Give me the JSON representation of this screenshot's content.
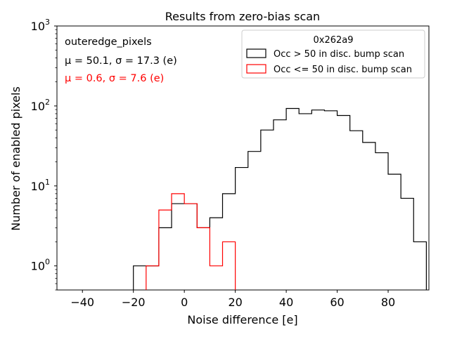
{
  "chart_data": {
    "type": "histogram",
    "title": "Results from zero-bias scan",
    "xlabel": "Noise difference [e]",
    "ylabel": "Number of enabled pixels",
    "xlim": [
      -50,
      96
    ],
    "ylim": [
      0.5,
      1000
    ],
    "yscale": "log",
    "x_ticks": [
      -40,
      -20,
      0,
      20,
      40,
      60,
      80
    ],
    "x_tick_labels": [
      "−40",
      "−20",
      "0",
      "20",
      "40",
      "60",
      "80"
    ],
    "y_ticks": [
      1,
      10,
      100,
      1000
    ],
    "y_tick_labels": [
      {
        "base": "10",
        "exp": "0"
      },
      {
        "base": "10",
        "exp": "1"
      },
      {
        "base": "10",
        "exp": "2"
      },
      {
        "base": "10",
        "exp": "3"
      }
    ],
    "grid": false,
    "legend_placement": "top-right",
    "legend_title": "0x262a9",
    "annotations": {
      "name": "outeredge_pixels",
      "stats_black": "μ = 50.1, σ = 17.3 (e)",
      "stats_red": "μ = 0.6, σ = 7.6 (e)"
    },
    "series": [
      {
        "name": "Occ > 50 in disc. bump scan",
        "color": "#000000",
        "bins": [
          [
            -20,
            -15,
            1
          ],
          [
            -15,
            -10,
            1
          ],
          [
            -10,
            -5,
            3
          ],
          [
            -5,
            0,
            6
          ],
          [
            0,
            5,
            6
          ],
          [
            5,
            10,
            3
          ],
          [
            10,
            15,
            4
          ],
          [
            15,
            20,
            8
          ],
          [
            20,
            25,
            17
          ],
          [
            25,
            30,
            27
          ],
          [
            30,
            35,
            50
          ],
          [
            35,
            40,
            67
          ],
          [
            40,
            45,
            93
          ],
          [
            45,
            50,
            80
          ],
          [
            50,
            55,
            89
          ],
          [
            55,
            60,
            87
          ],
          [
            60,
            65,
            76
          ],
          [
            65,
            70,
            49
          ],
          [
            70,
            75,
            35
          ],
          [
            75,
            80,
            26
          ],
          [
            80,
            85,
            14
          ],
          [
            85,
            90,
            7
          ],
          [
            90,
            95,
            2
          ]
        ]
      },
      {
        "name": "Occ <= 50 in disc. bump scan",
        "color": "#ff0000",
        "bins": [
          [
            -15,
            -10,
            1
          ],
          [
            -10,
            -5,
            5
          ],
          [
            -5,
            0,
            8
          ],
          [
            0,
            5,
            6
          ],
          [
            5,
            10,
            3
          ],
          [
            10,
            15,
            1
          ],
          [
            15,
            20,
            2
          ]
        ]
      }
    ]
  }
}
